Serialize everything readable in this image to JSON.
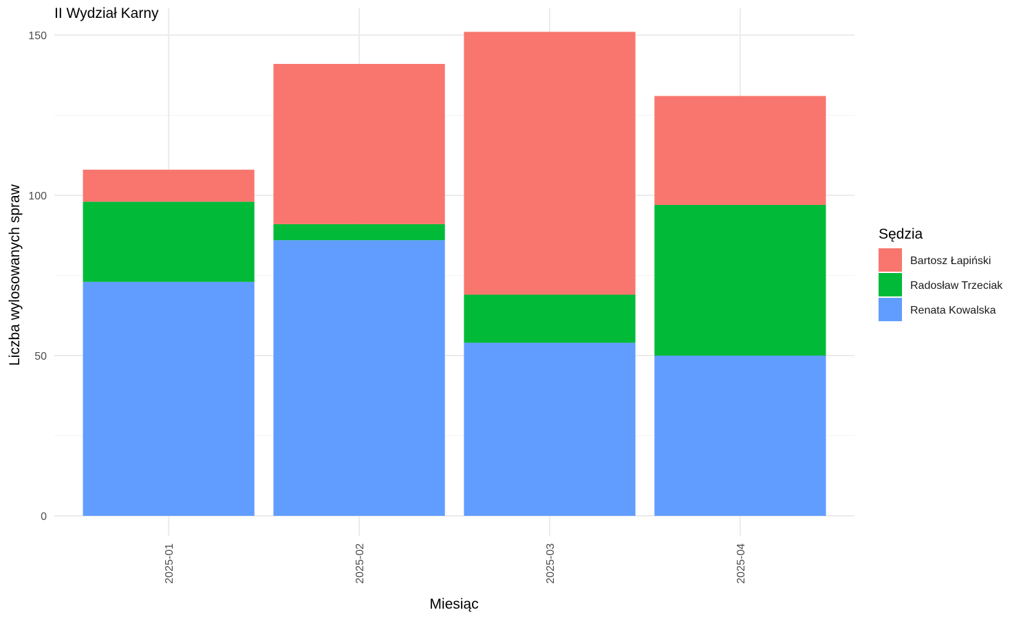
{
  "chart_data": {
    "type": "bar",
    "stacked": true,
    "title": "II Wydział Karny",
    "xlabel": "Miesiąc",
    "ylabel": "Liczba wylosowanych spraw",
    "categories": [
      "2025-01",
      "2025-02",
      "2025-03",
      "2025-04"
    ],
    "ylim": [
      0,
      157
    ],
    "yticks": [
      0,
      50,
      100,
      150
    ],
    "grid": true,
    "legend_title": "Sędzia",
    "legend_position": "right",
    "stack_order_bottom_to_top": [
      "Renata Kowalska",
      "Radosław Trzeciak",
      "Bartosz Łapiński"
    ],
    "series": [
      {
        "name": "Bartosz Łapiński",
        "color": "#F8766D",
        "values": [
          10,
          50,
          82,
          34
        ]
      },
      {
        "name": "Radosław Trzeciak",
        "color": "#00BA38",
        "values": [
          25,
          5,
          15,
          47
        ]
      },
      {
        "name": "Renata Kowalska",
        "color": "#619CFF",
        "values": [
          73,
          86,
          54,
          50
        ]
      }
    ]
  }
}
